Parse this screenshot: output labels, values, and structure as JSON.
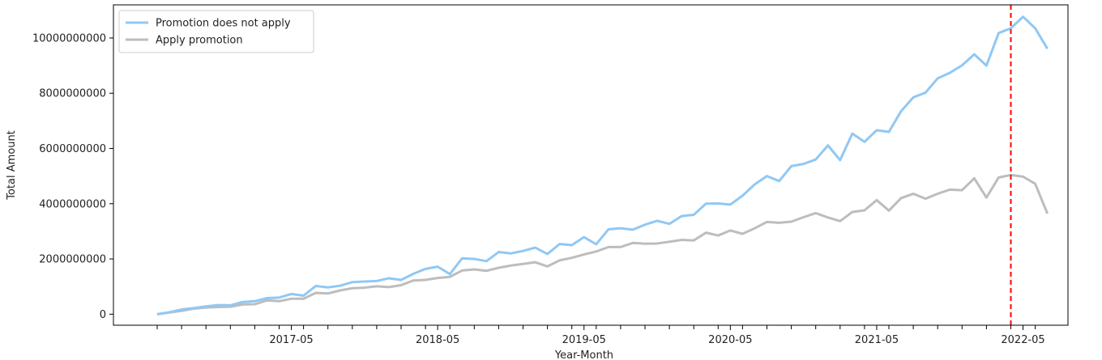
{
  "chart_data": {
    "type": "line",
    "xlabel": "Year-Month",
    "ylabel": "Total Amount",
    "x_start": "2016-06",
    "x_end": "2022-06",
    "x_ticks": [
      "2017-05",
      "2018-05",
      "2019-05",
      "2020-05",
      "2021-05",
      "2022-05"
    ],
    "y_ticks": [
      "0",
      "2000000000",
      "4000000000",
      "6000000000",
      "8000000000",
      "10000000000"
    ],
    "ylim": [
      -400000000,
      11200000000
    ],
    "grid": false,
    "legend_position": "top-left",
    "vline": {
      "x": "2022-04",
      "color": "#ff0000",
      "style": "dashed"
    },
    "series": [
      {
        "name": "Promotion does not apply",
        "color": "#90c8f4",
        "values": [
          0,
          70000000,
          170000000,
          220000000,
          280000000,
          330000000,
          320000000,
          440000000,
          470000000,
          580000000,
          600000000,
          730000000,
          670000000,
          1020000000,
          970000000,
          1030000000,
          1160000000,
          1180000000,
          1200000000,
          1300000000,
          1240000000,
          1460000000,
          1640000000,
          1720000000,
          1450000000,
          2020000000,
          2000000000,
          1920000000,
          2250000000,
          2200000000,
          2290000000,
          2410000000,
          2180000000,
          2540000000,
          2500000000,
          2790000000,
          2530000000,
          3070000000,
          3110000000,
          3060000000,
          3240000000,
          3380000000,
          3270000000,
          3550000000,
          3600000000,
          4000000000,
          4010000000,
          3970000000,
          4290000000,
          4700000000,
          5000000000,
          4820000000,
          5360000000,
          5440000000,
          5600000000,
          6110000000,
          5580000000,
          6540000000,
          6240000000,
          6660000000,
          6600000000,
          7350000000,
          7850000000,
          8020000000,
          8540000000,
          8740000000,
          9010000000,
          9410000000,
          9000000000,
          10180000000,
          10350000000,
          10770000000,
          10350000000,
          9610000000
        ]
      },
      {
        "name": "Apply promotion",
        "color": "#bdbdbd",
        "values": [
          0,
          60000000,
          120000000,
          200000000,
          240000000,
          260000000,
          270000000,
          350000000,
          360000000,
          500000000,
          470000000,
          560000000,
          560000000,
          770000000,
          750000000,
          860000000,
          940000000,
          960000000,
          1010000000,
          980000000,
          1050000000,
          1220000000,
          1240000000,
          1310000000,
          1350000000,
          1580000000,
          1620000000,
          1570000000,
          1680000000,
          1760000000,
          1820000000,
          1880000000,
          1730000000,
          1950000000,
          2040000000,
          2160000000,
          2270000000,
          2430000000,
          2430000000,
          2580000000,
          2550000000,
          2560000000,
          2620000000,
          2690000000,
          2670000000,
          2950000000,
          2850000000,
          3030000000,
          2910000000,
          3110000000,
          3340000000,
          3310000000,
          3350000000,
          3510000000,
          3660000000,
          3500000000,
          3370000000,
          3700000000,
          3760000000,
          4130000000,
          3750000000,
          4200000000,
          4360000000,
          4180000000,
          4360000000,
          4510000000,
          4490000000,
          4920000000,
          4220000000,
          4950000000,
          5040000000,
          4980000000,
          4720000000,
          3640000000
        ]
      }
    ]
  }
}
